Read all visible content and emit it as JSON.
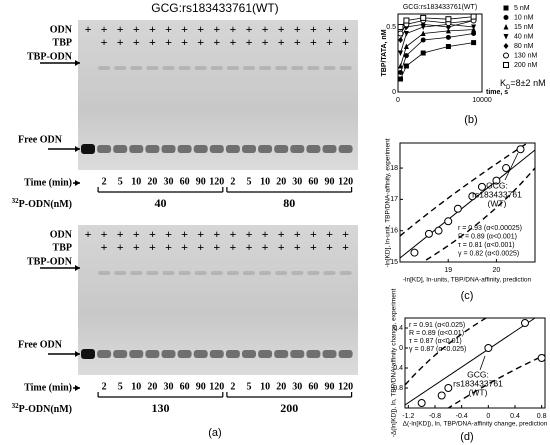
{
  "panel_a": {
    "title": "GCG:rs183433761(WT)",
    "label": "(a)",
    "plus": "+",
    "gels": [
      {
        "rows": [
          "ODN",
          "TBP",
          "TBP-ODN"
        ],
        "free": "Free ODN",
        "time_label": "Time (min)",
        "times": [
          2,
          5,
          10,
          20,
          30,
          60,
          90,
          120,
          2,
          5,
          10,
          20,
          30,
          60,
          90,
          120
        ],
        "isotope": "32",
        "conc_label": "P-ODN(nM)",
        "concs": [
          40,
          80
        ]
      },
      {
        "rows": [
          "ODN",
          "TBP",
          "TBP-ODN"
        ],
        "free": "Free ODN",
        "time_label": "Time (min)",
        "times": [
          2,
          5,
          10,
          20,
          30,
          60,
          90,
          120,
          2,
          5,
          10,
          20,
          30,
          60,
          90,
          120
        ],
        "isotope": "32",
        "conc_label": "P-ODN(nM)",
        "concs": [
          130,
          200
        ]
      }
    ]
  },
  "panel_b": {
    "type": "line",
    "title": "GCG:rs183433761(WT)",
    "label": "(b)",
    "y_label": "TBP/TATA, nM",
    "x_label": "time, s",
    "kd": {
      "main": "K",
      "sub": "D",
      "rest": "=8±2 nM"
    },
    "x": [
      300,
      1000,
      3000,
      6000,
      9000
    ],
    "xlim": [
      0,
      10000
    ],
    "xticks": [
      0,
      10000
    ],
    "ylim": [
      0,
      0.6
    ],
    "yticks": [
      0,
      0.5
    ],
    "series": [
      {
        "name": "5 nM",
        "color": "#000000",
        "marker": "square",
        "values": [
          0.1,
          0.2,
          0.3,
          0.35,
          0.38
        ]
      },
      {
        "name": "10 nM",
        "color": "#000000",
        "marker": "circle",
        "values": [
          0.15,
          0.28,
          0.4,
          0.42,
          0.45
        ]
      },
      {
        "name": "15 nM",
        "color": "#000000",
        "marker": "triangle",
        "values": [
          0.2,
          0.35,
          0.45,
          0.47,
          0.48
        ]
      },
      {
        "name": "40 nM",
        "color": "#000000",
        "marker": "down",
        "values": [
          0.3,
          0.45,
          0.5,
          0.52,
          0.5
        ]
      },
      {
        "name": "80 nM",
        "color": "#000000",
        "marker": "diamond",
        "values": [
          0.4,
          0.5,
          0.52,
          0.5,
          0.55
        ]
      },
      {
        "name": "130 nM",
        "color": "#000000",
        "marker": "opencircle",
        "values": [
          0.45,
          0.52,
          0.55,
          0.53,
          0.55
        ]
      },
      {
        "name": "200 nM",
        "color": "#000000",
        "marker": "opensquare",
        "values": [
          0.5,
          0.55,
          0.57,
          0.56,
          0.58
        ]
      }
    ]
  },
  "panel_c": {
    "type": "scatter",
    "label": "(c)",
    "y_label": "-ln[KD], ln-unit, TBP/DNA-affinity, experiment",
    "x_label": "-ln[KD], ln-units, TBP/DNA-affinity, prediction",
    "x": [
      18.3,
      18.6,
      18.8,
      19.0,
      19.2,
      19.5,
      19.7,
      20.0,
      20.2,
      20.5
    ],
    "values": [
      15.3,
      15.9,
      16.0,
      16.3,
      16.7,
      17.1,
      17.4,
      17.6,
      18.0,
      18.6
    ],
    "xlim": [
      18,
      20.8
    ],
    "xticks": [
      19,
      20
    ],
    "ylim": [
      15,
      18.8
    ],
    "yticks": [
      15,
      16,
      17,
      18
    ],
    "annotation": [
      "GCG:",
      "rs183433761",
      "(WT)"
    ],
    "stats": [
      "r = 0.93 (α<0.00025)",
      "R = 0.89 (α<0.001)",
      "τ = 0.81 (α<0.001)",
      "γ = 0.82 (α<0.0025)"
    ]
  },
  "panel_d": {
    "type": "scatter",
    "label": "(d)",
    "y_label": "-Δ(ln[KD]), ln, TBP/DNA-affinity change, experiment",
    "x_label": "Δ(-ln[KD]), ln, TBP/DNA-affinity change, prediction",
    "x": [
      -1.0,
      -0.7,
      -0.6,
      0.0,
      0.55,
      0.8
    ],
    "values": [
      -1.1,
      -0.95,
      -0.8,
      0.0,
      0.5,
      -0.2
    ],
    "xlim": [
      -1.25,
      0.85
    ],
    "xticks": [
      -1.2,
      -0.8,
      -0.4,
      0,
      0.4,
      0.8
    ],
    "ylim": [
      -1.2,
      0.6
    ],
    "yticks": [
      -0.8,
      -0.4,
      0,
      0.4
    ],
    "annotation": [
      "GCG:",
      "rs183433761",
      "(WT)"
    ],
    "stats": [
      "r = 0.91 (α<0.025)",
      "R = 0.89 (α<0.01)",
      "τ = 0.87 (α<0.01)",
      "γ = 0.87 (α<0.025)"
    ]
  }
}
